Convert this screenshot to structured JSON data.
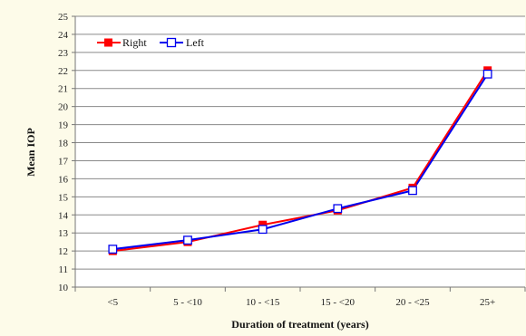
{
  "chart_data": {
    "type": "line",
    "title": "",
    "xlabel": "Duration of treatment (years)",
    "ylabel": "Mean IOP",
    "categories": [
      "<5",
      "5 - <10",
      "10 - <15",
      "15 - <20",
      "20 - <25",
      "25+"
    ],
    "ylim": [
      10,
      25
    ],
    "ytick_step": 1,
    "grid": "horizontal",
    "legend_position": "top-left",
    "series": [
      {
        "name": "Right",
        "values": [
          12.0,
          12.5,
          13.45,
          14.25,
          15.5,
          22.0
        ],
        "color": "#ff0000",
        "marker": "filled-square"
      },
      {
        "name": "Left",
        "values": [
          12.1,
          12.6,
          13.2,
          14.35,
          15.35,
          21.8
        ],
        "color": "#0000ee",
        "marker": "open-square"
      }
    ]
  }
}
